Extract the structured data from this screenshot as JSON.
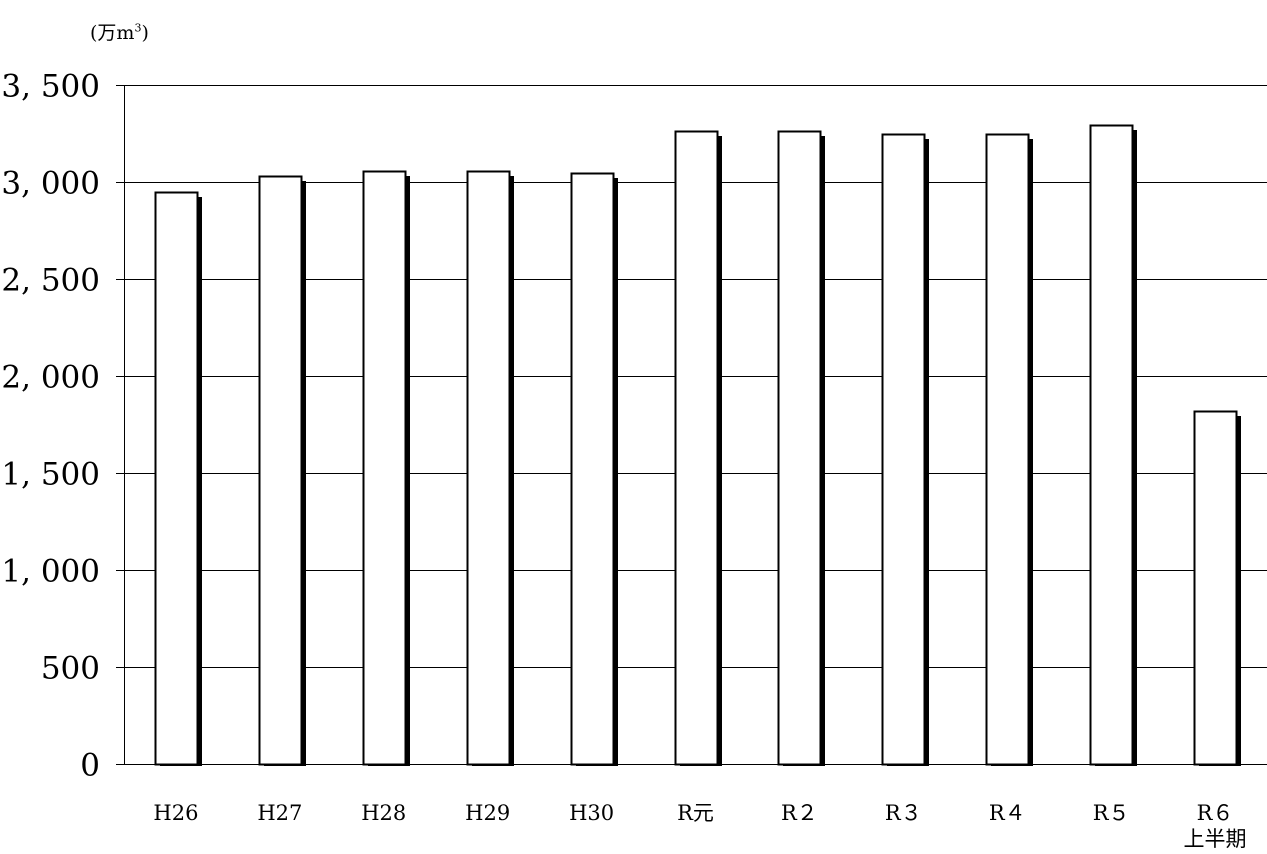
{
  "unit_label": {
    "main": "(万m",
    "sup": "3",
    "close": ")"
  },
  "chart_data": {
    "type": "bar",
    "title": "",
    "xlabel": "",
    "ylabel": "(万m³)",
    "ylim": [
      0,
      3500
    ],
    "yticks": [
      0,
      500,
      1000,
      1500,
      2000,
      2500,
      3000,
      3500
    ],
    "ytick_labels": [
      "0",
      "500",
      "1, 000",
      "1, 500",
      "2, 000",
      "2, 500",
      "3, 000",
      "3, 500"
    ],
    "grid": true,
    "legend": "none",
    "categories": [
      "H26",
      "H27",
      "H28",
      "H29",
      "H30",
      "R元",
      "R２",
      "R３",
      "R４",
      "R５",
      "R６"
    ],
    "category_sublabels": [
      "",
      "",
      "",
      "",
      "",
      "",
      "",
      "",
      "",
      "",
      "上半期"
    ],
    "values": [
      2950,
      3030,
      3055,
      3055,
      3045,
      3265,
      3265,
      3250,
      3250,
      3295,
      1820
    ],
    "colors": {
      "bar_fill": "#ffffff",
      "bar_stroke": "#000000",
      "shadow": "#000000",
      "grid": "#000000"
    }
  }
}
